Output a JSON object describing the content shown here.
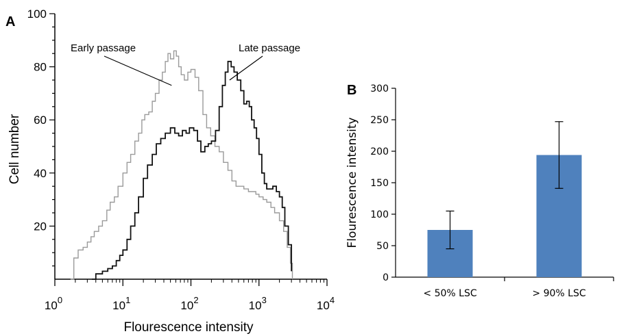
{
  "chart_data": [
    {
      "panel": "A",
      "type": "line",
      "xlabel": "Flourescence intensity",
      "ylabel": "Cell number",
      "xscale": "log",
      "xlim": [
        1,
        10000
      ],
      "ylim": [
        0,
        100
      ],
      "x_ticks": [
        {
          "value": 1,
          "base": "10",
          "exp": "0"
        },
        {
          "value": 10,
          "base": "10",
          "exp": "1"
        },
        {
          "value": 100,
          "base": "10",
          "exp": "2"
        },
        {
          "value": 1000,
          "base": "10",
          "exp": "3"
        },
        {
          "value": 10000,
          "base": "10",
          "exp": "4"
        }
      ],
      "y_ticks": [
        "20",
        "40",
        "60",
        "80",
        "100"
      ],
      "grid": false,
      "series": [
        {
          "name": "Early passage",
          "color": "#9a9a9a",
          "points": [
            [
              1.7,
              0
            ],
            [
              1.9,
              8
            ],
            [
              2.2,
              11
            ],
            [
              2.6,
              12
            ],
            [
              3,
              14
            ],
            [
              3.4,
              16
            ],
            [
              3.8,
              18
            ],
            [
              4.4,
              20
            ],
            [
              5,
              22
            ],
            [
              5.8,
              26
            ],
            [
              6.5,
              29
            ],
            [
              7.5,
              31
            ],
            [
              8.5,
              35
            ],
            [
              10,
              40
            ],
            [
              11.5,
              44
            ],
            [
              13,
              47
            ],
            [
              15,
              52
            ],
            [
              17,
              55
            ],
            [
              19,
              60
            ],
            [
              21,
              62
            ],
            [
              24,
              63
            ],
            [
              27,
              67
            ],
            [
              30,
              70
            ],
            [
              34,
              75
            ],
            [
              38,
              78
            ],
            [
              42,
              82
            ],
            [
              46,
              85
            ],
            [
              50,
              83
            ],
            [
              56,
              86
            ],
            [
              61,
              84
            ],
            [
              66,
              80
            ],
            [
              72,
              77
            ],
            [
              80,
              75
            ],
            [
              90,
              78
            ],
            [
              100,
              79
            ],
            [
              115,
              76
            ],
            [
              130,
              71
            ],
            [
              150,
              62
            ],
            [
              170,
              57
            ],
            [
              195,
              54
            ],
            [
              225,
              50
            ],
            [
              260,
              48
            ],
            [
              300,
              44
            ],
            [
              350,
              41
            ],
            [
              400,
              37
            ],
            [
              460,
              35
            ],
            [
              530,
              35
            ],
            [
              600,
              34
            ],
            [
              700,
              33
            ],
            [
              800,
              33
            ],
            [
              900,
              32
            ],
            [
              1000,
              31
            ],
            [
              1150,
              30
            ],
            [
              1300,
              29
            ],
            [
              1500,
              27
            ],
            [
              1700,
              25
            ],
            [
              2000,
              22
            ],
            [
              2300,
              18
            ],
            [
              2600,
              12
            ],
            [
              2900,
              6
            ],
            [
              3100,
              0
            ]
          ]
        },
        {
          "name": "Late passage",
          "color": "#111111",
          "points": [
            [
              3.5,
              0
            ],
            [
              4,
              2
            ],
            [
              5,
              3
            ],
            [
              6,
              4
            ],
            [
              7,
              5
            ],
            [
              8,
              7
            ],
            [
              9,
              9
            ],
            [
              10,
              11
            ],
            [
              11.5,
              15
            ],
            [
              13,
              20
            ],
            [
              15,
              25
            ],
            [
              17,
              31
            ],
            [
              20,
              38
            ],
            [
              23,
              43
            ],
            [
              27,
              47
            ],
            [
              31,
              51
            ],
            [
              36,
              53
            ],
            [
              42,
              55
            ],
            [
              50,
              57
            ],
            [
              58,
              55
            ],
            [
              66,
              54
            ],
            [
              75,
              56
            ],
            [
              85,
              55
            ],
            [
              95,
              57
            ],
            [
              110,
              56
            ],
            [
              125,
              52
            ],
            [
              140,
              48
            ],
            [
              160,
              50
            ],
            [
              180,
              51
            ],
            [
              200,
              52
            ],
            [
              230,
              56
            ],
            [
              260,
              65
            ],
            [
              290,
              73
            ],
            [
              320,
              78
            ],
            [
              350,
              82
            ],
            [
              390,
              80
            ],
            [
              430,
              78
            ],
            [
              480,
              75
            ],
            [
              540,
              71
            ],
            [
              600,
              66
            ],
            [
              660,
              67
            ],
            [
              720,
              65
            ],
            [
              780,
              60
            ],
            [
              850,
              57
            ],
            [
              920,
              53
            ],
            [
              1000,
              47
            ],
            [
              1100,
              40
            ],
            [
              1200,
              36
            ],
            [
              1300,
              34
            ],
            [
              1450,
              34
            ],
            [
              1600,
              35
            ],
            [
              1800,
              33
            ],
            [
              2000,
              31
            ],
            [
              2200,
              27
            ],
            [
              2400,
              20
            ],
            [
              2700,
              13
            ],
            [
              3000,
              3
            ]
          ]
        }
      ],
      "annotations": [
        {
          "text": "Early passage",
          "target_x": 52,
          "target_y": 73
        },
        {
          "text": "Late passage",
          "target_x": 370,
          "target_y": 75
        }
      ]
    },
    {
      "panel": "B",
      "type": "bar",
      "ylabel": "Flourescence intensity",
      "categories": [
        "< 50% LSC",
        "> 90% LSC"
      ],
      "values": [
        75,
        194
      ],
      "error_low": [
        45,
        141
      ],
      "error_high": [
        105,
        247
      ],
      "ylim": [
        0,
        300
      ],
      "y_ticks": [
        "0",
        "50",
        "100",
        "150",
        "200",
        "250",
        "300"
      ],
      "bar_color": "#4f81bd",
      "grid": false
    }
  ]
}
